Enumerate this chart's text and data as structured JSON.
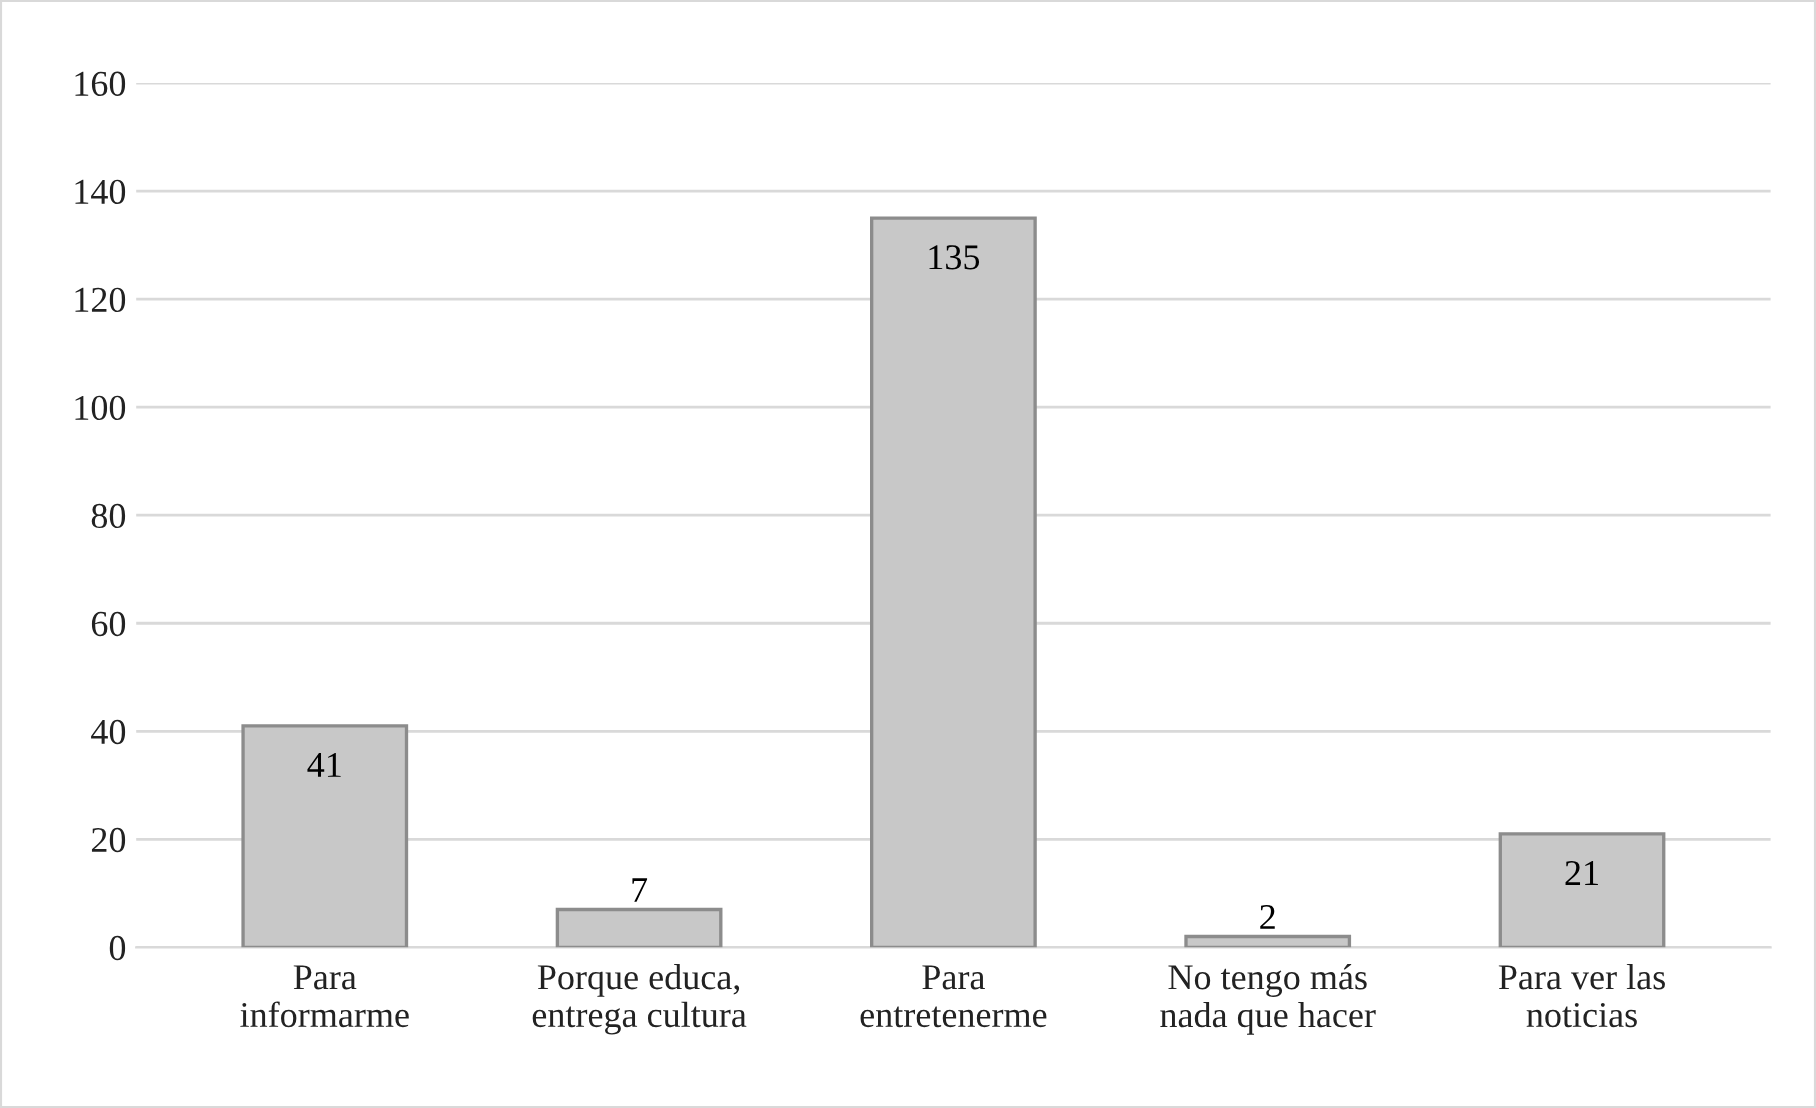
{
  "chart_data": {
    "type": "bar",
    "categories": [
      "Para\ninformarme",
      "Porque educa,\nentrega cultura",
      "Para\nentretenerme",
      "No tengo más\nnada que hacer",
      "Para ver las\nnoticias"
    ],
    "values": [
      41,
      7,
      135,
      2,
      21
    ],
    "color": "#c8c8c8",
    "ylim": [
      0,
      160
    ],
    "yticks": [
      0,
      20,
      40,
      60,
      80,
      100,
      120,
      140,
      160
    ],
    "grid": "y",
    "data_labels": true
  }
}
